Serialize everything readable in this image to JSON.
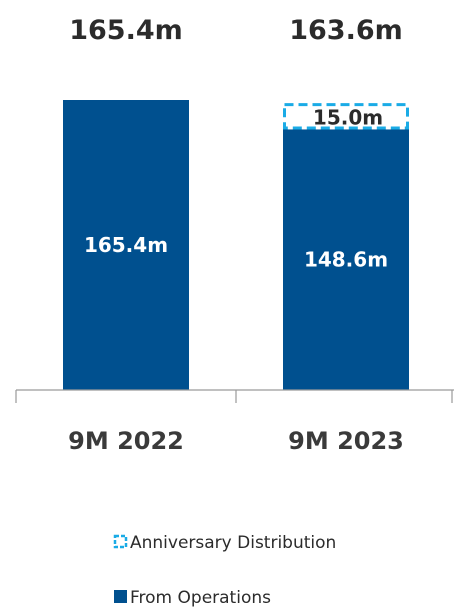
{
  "chart_data": {
    "type": "bar",
    "stacked": true,
    "categories": [
      "9M 2022",
      "9M 2023"
    ],
    "series": [
      {
        "name": "From Operations",
        "values": [
          165.4,
          148.6
        ],
        "labels": [
          "165.4m",
          "148.6m"
        ],
        "style": "solid",
        "color": "#00508F"
      },
      {
        "name": "Anniversary Distribution",
        "values": [
          0,
          15.0
        ],
        "labels": [
          "",
          "15.0m"
        ],
        "style": "dashed-outline",
        "color": "#1AABE6"
      }
    ],
    "totals": [
      165.4,
      163.6
    ],
    "total_labels": [
      "165.4m",
      "163.6m"
    ],
    "ylim": [
      0,
      165.4
    ],
    "grid": false,
    "legend_position": "bottom"
  }
}
